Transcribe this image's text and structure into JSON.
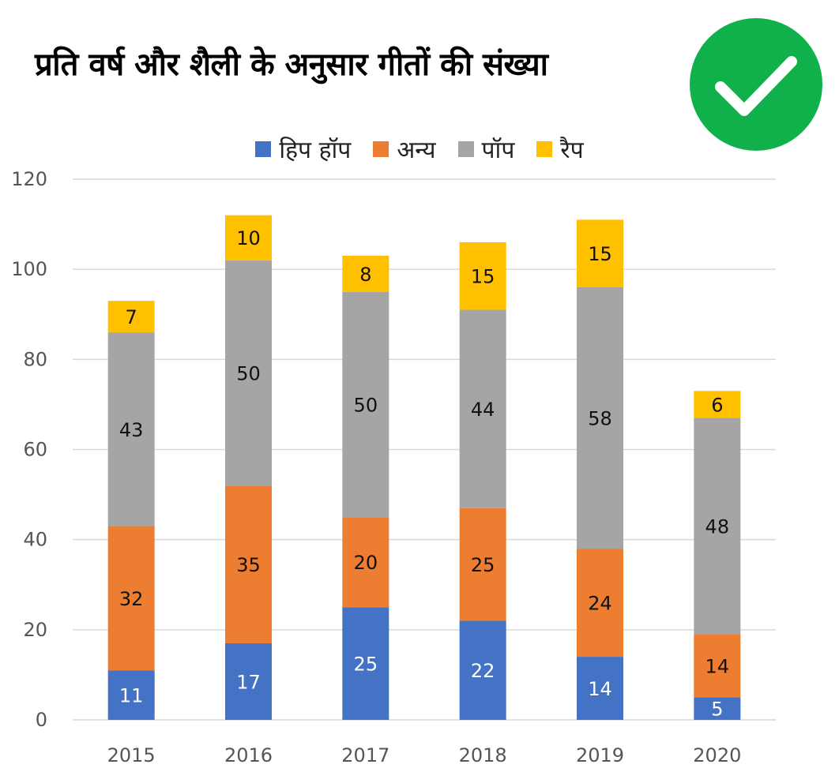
{
  "title": "प्रति वर्ष और शैली के अनुसार गीतों की संख्या",
  "badge_icon": "check-mark-icon",
  "colors": {
    "hip_hop": "#4472C4",
    "other": "#ED7D31",
    "pop": "#A5A5A5",
    "rap": "#FFC000",
    "badge": "#10B04A",
    "grid": "#d9d9d9"
  },
  "chart_data": {
    "type": "bar",
    "stacked": true,
    "categories": [
      "2015",
      "2016",
      "2017",
      "2018",
      "2019",
      "2020"
    ],
    "series": [
      {
        "name": "हिप हॉप",
        "values": [
          11,
          17,
          25,
          22,
          14,
          5
        ]
      },
      {
        "name": "अन्य",
        "values": [
          32,
          35,
          20,
          25,
          24,
          14
        ]
      },
      {
        "name": "पॉप",
        "values": [
          43,
          50,
          50,
          44,
          58,
          48
        ]
      },
      {
        "name": "रैप",
        "values": [
          7,
          10,
          8,
          15,
          15,
          6
        ]
      }
    ],
    "ylim": [
      0,
      120
    ],
    "yticks": [
      "0",
      "20",
      "40",
      "60",
      "80",
      "100",
      "120"
    ],
    "grid": true,
    "legend_position": "top-center"
  }
}
